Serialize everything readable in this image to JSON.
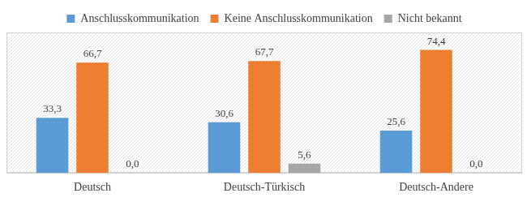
{
  "chart_data": {
    "type": "bar",
    "categories": [
      "Deutsch",
      "Deutsch-Türkisch",
      "Deutsch-Andere"
    ],
    "series": [
      {
        "name": "Anschlusskommunikation",
        "color": "#5b9bd5",
        "values": [
          33.3,
          30.6,
          25.6
        ],
        "value_labels": [
          "33,3",
          "30,6",
          "25,6"
        ]
      },
      {
        "name": "Keine Anschlusskommunikation",
        "color": "#ed7d31",
        "values": [
          66.7,
          67.7,
          74.4
        ],
        "value_labels": [
          "66,7",
          "67,7",
          "74,4"
        ]
      },
      {
        "name": "Nicht bekannt",
        "color": "#a5a5a5",
        "values": [
          0.0,
          5.6,
          0.0
        ],
        "value_labels": [
          "0,0",
          "5,6",
          "0,0"
        ]
      }
    ],
    "ylim": [
      0,
      85
    ],
    "grid": false,
    "legend": "top",
    "data_labels": true,
    "tick_labels": "x"
  }
}
